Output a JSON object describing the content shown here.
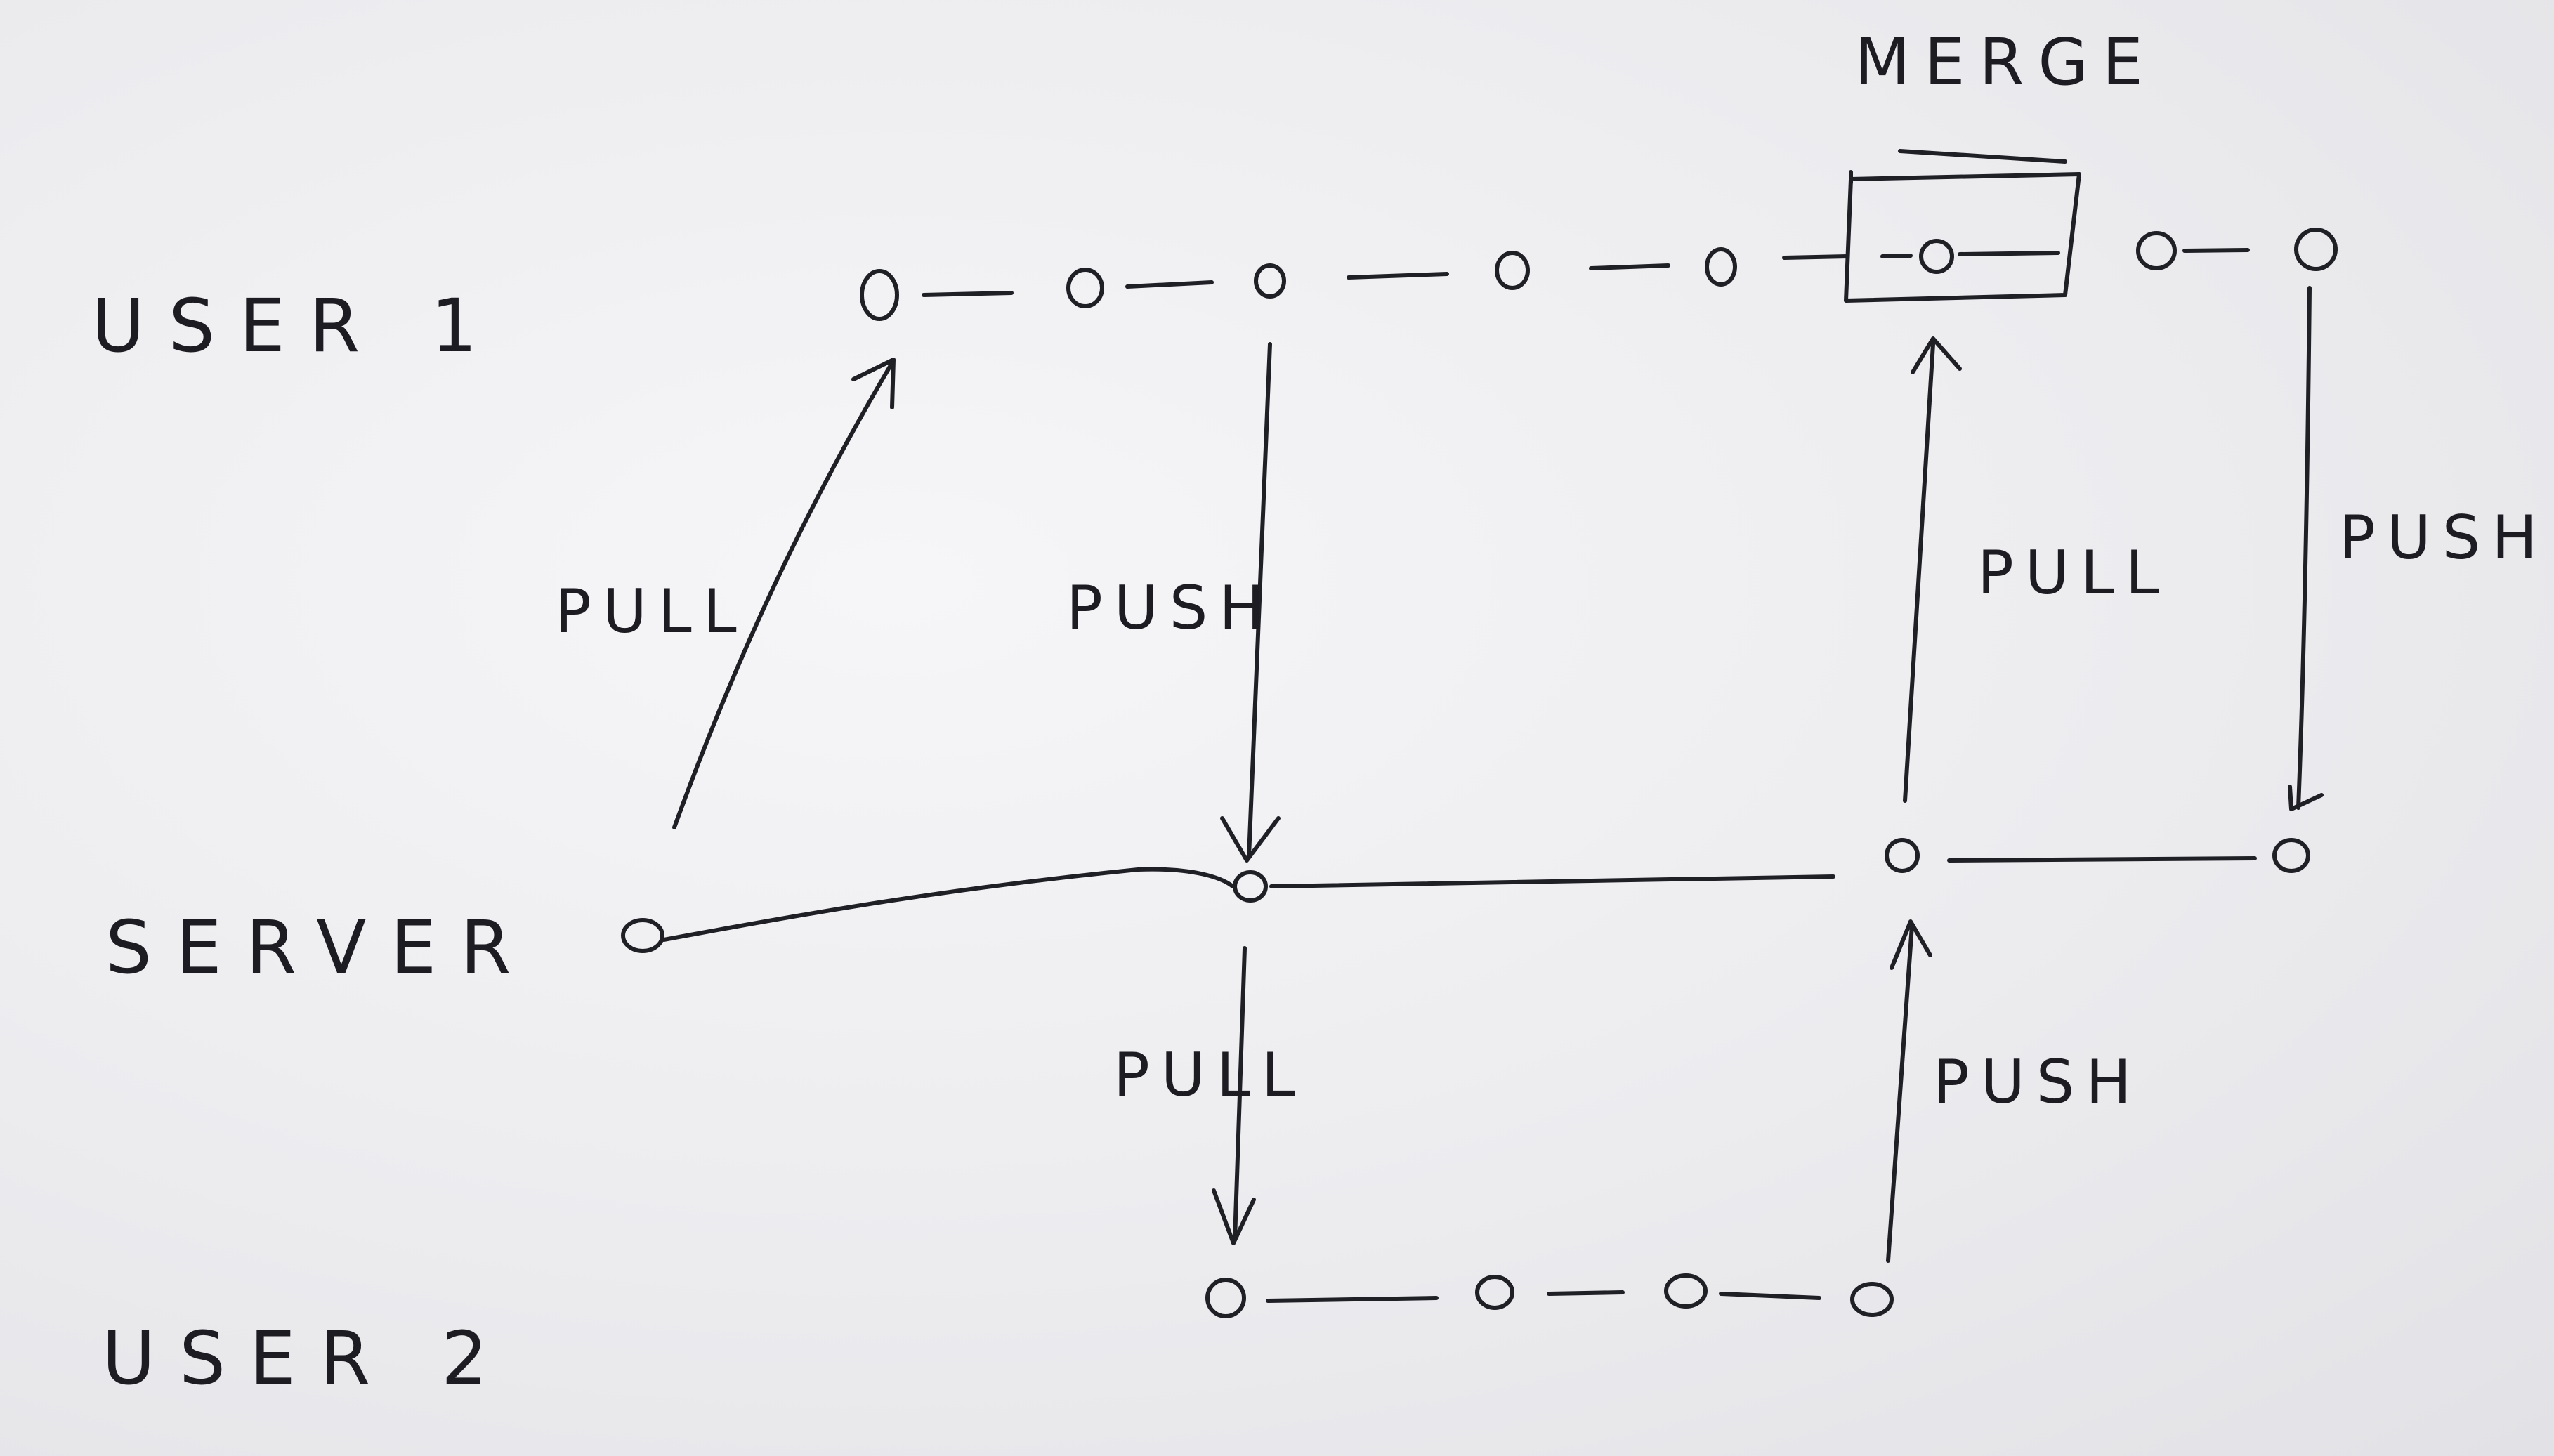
{
  "rows": {
    "user1": "USER 1",
    "server": "SERVER",
    "user2": "USER 2"
  },
  "operations": {
    "pull_server_to_user1": "PULL",
    "push_user1_to_server": "PUSH",
    "pull_server_to_user2": "PULL",
    "push_user2_to_server": "PUSH",
    "pull_server_to_user1_merge": "PULL",
    "push_user1_final": "PUSH"
  },
  "merge": {
    "label": "MERGE"
  },
  "commits": {
    "user1": 8,
    "server": 4,
    "user2": 4
  }
}
